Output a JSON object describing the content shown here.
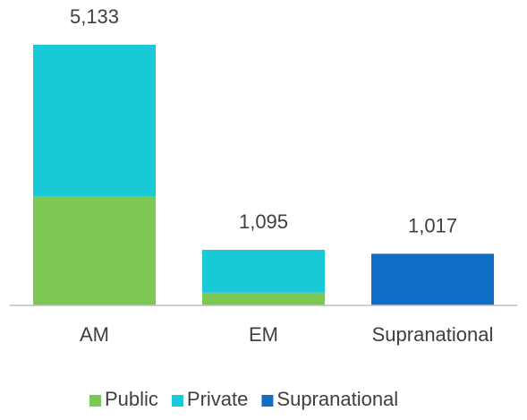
{
  "chart_data": {
    "type": "bar",
    "stacked": true,
    "title": "",
    "xlabel": "",
    "ylabel": "",
    "categories": [
      "AM",
      "EM",
      "Supranational"
    ],
    "series": [
      {
        "name": "Public",
        "color": "#7dc754",
        "values": [
          2140,
          250,
          0
        ]
      },
      {
        "name": "Private",
        "color": "#19c9d8",
        "values": [
          2993,
          845,
          0
        ]
      },
      {
        "name": "Supranational",
        "color": "#0f6ec5",
        "values": [
          0,
          0,
          1017
        ]
      }
    ],
    "totals": [
      5133,
      1095,
      1017
    ],
    "total_labels": [
      "5,133",
      "1,095",
      "1,017"
    ],
    "ylim": [
      0,
      5133
    ],
    "grid": false,
    "legend": "bottom"
  }
}
